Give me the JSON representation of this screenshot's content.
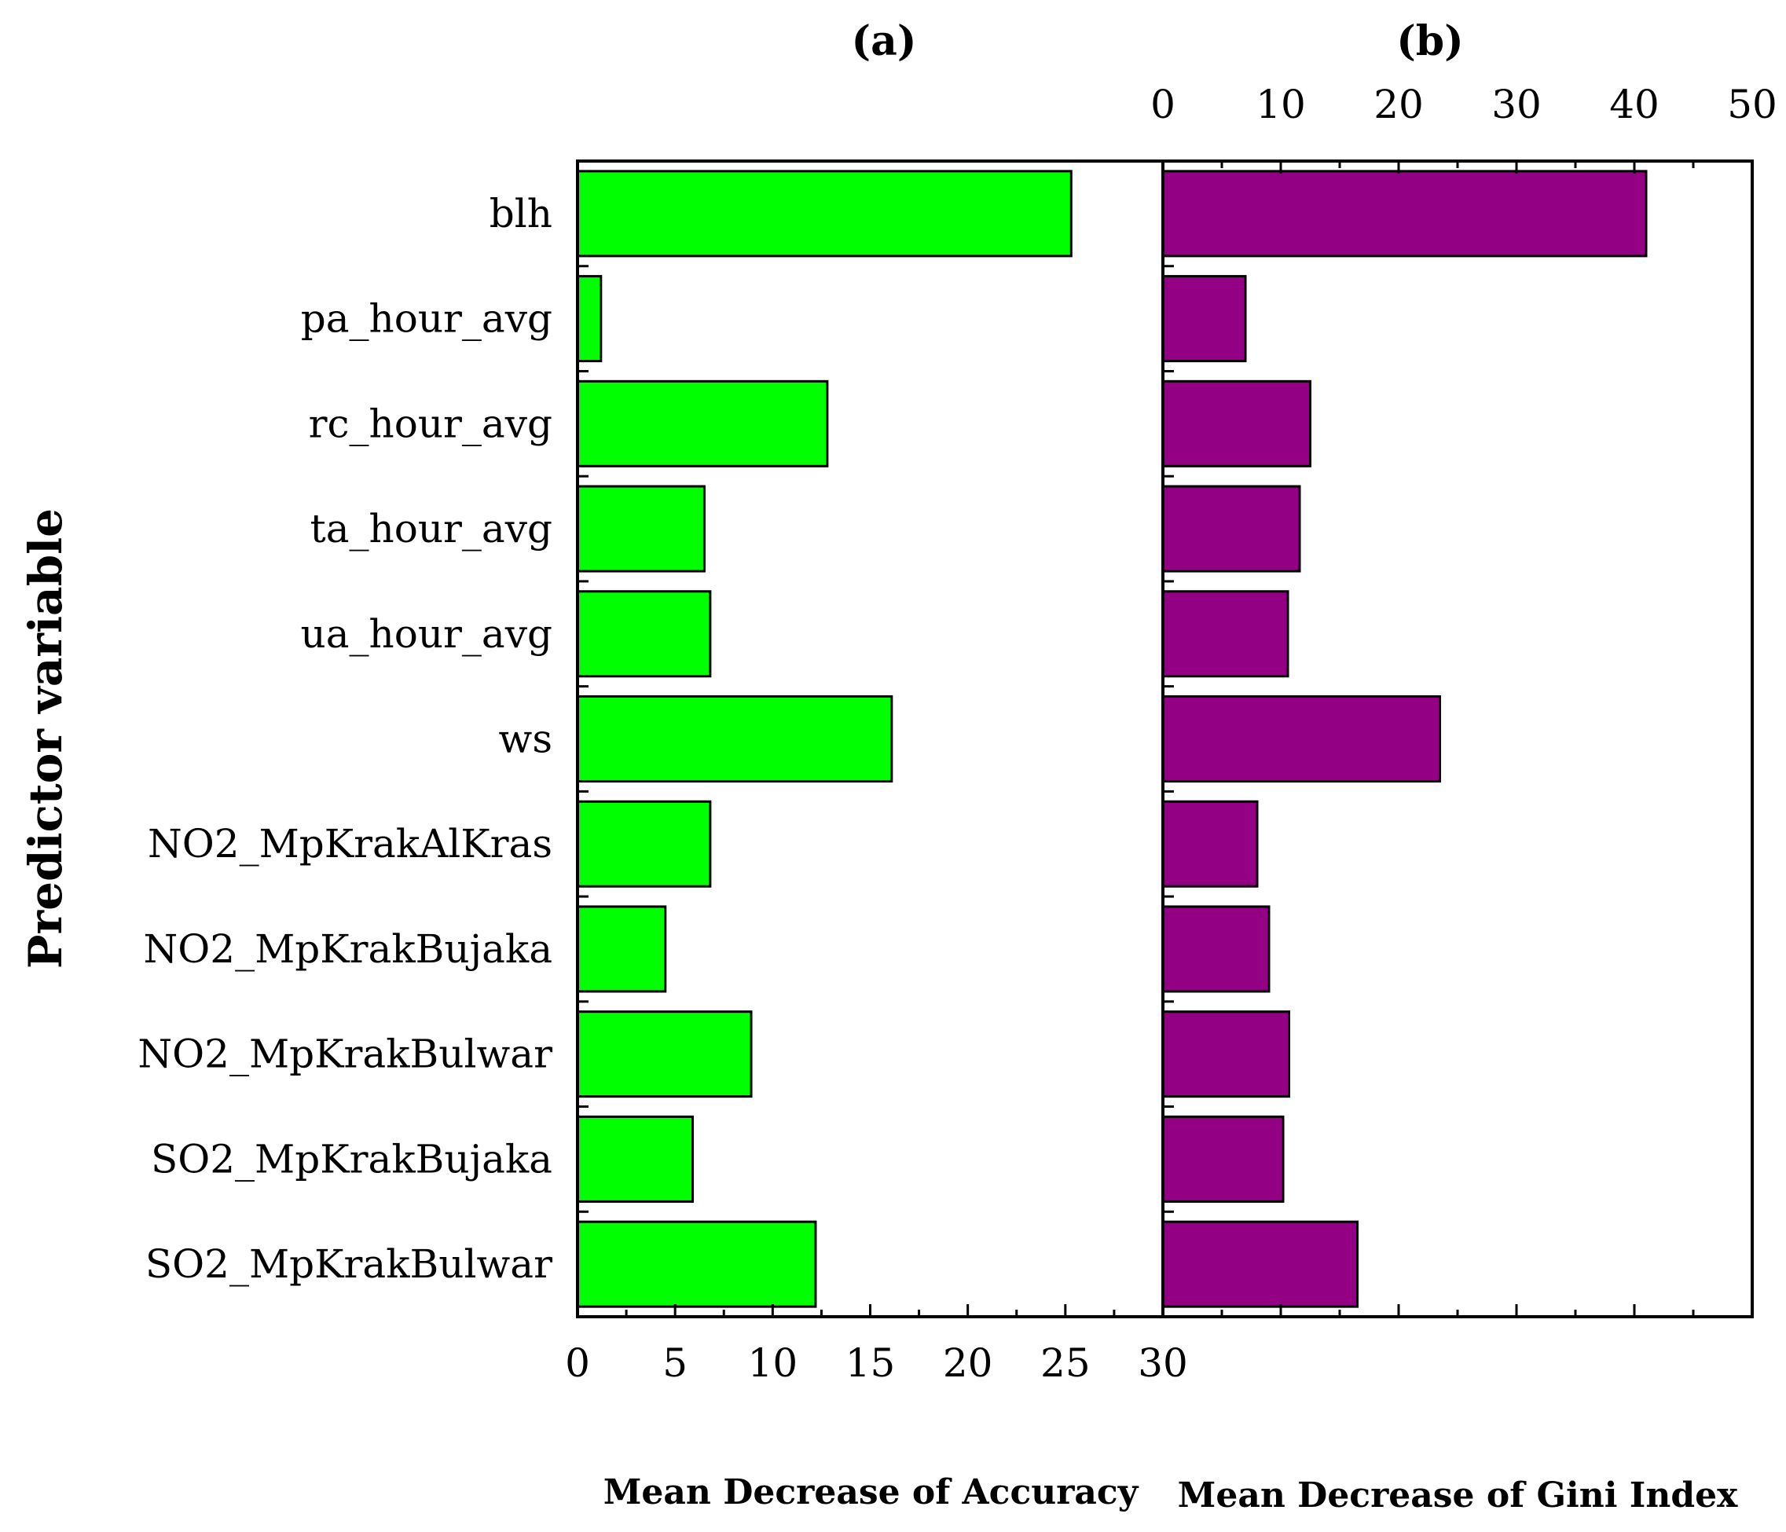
{
  "chart_data": {
    "type": "bar",
    "orientation": "horizontal",
    "ylabel": "Predictor variable",
    "categories": [
      "blh",
      "pa_hour_avg",
      "rc_hour_avg",
      "ta_hour_avg",
      "ua_hour_avg",
      "ws",
      "NO2_MpKrakAlKras",
      "NO2_MpKrakBujaka",
      "NO2_MpKrakBulwar",
      "SO2_MpKrakBujaka",
      "SO2_MpKrakBulwar"
    ],
    "panels": [
      {
        "id": "a",
        "panel_label": "(a)",
        "xlabel": "Mean Decrease of Accuracy",
        "xlim": [
          0,
          30
        ],
        "ticks": [
          0,
          5,
          10,
          15,
          20,
          25,
          30
        ],
        "tick_labels": [
          "0",
          "5",
          "10",
          "15",
          "20",
          "25",
          "30"
        ],
        "tick_position": "bottom",
        "color": "#00FF00",
        "values": [
          25.3,
          1.2,
          12.8,
          6.5,
          6.8,
          16.1,
          6.8,
          4.5,
          8.9,
          5.9,
          12.2
        ]
      },
      {
        "id": "b",
        "panel_label": "(b)",
        "xlabel": "Mean Decrease of Gini Index",
        "xlim": [
          0,
          50
        ],
        "ticks": [
          0,
          10,
          20,
          30,
          40,
          50
        ],
        "tick_labels": [
          "0",
          "10",
          "20",
          "30",
          "40",
          "50"
        ],
        "tick_position": "top",
        "color": "#940084",
        "values": [
          41.0,
          7.0,
          12.5,
          11.6,
          10.6,
          23.5,
          8.0,
          9.0,
          10.7,
          10.2,
          16.5
        ]
      }
    ]
  }
}
